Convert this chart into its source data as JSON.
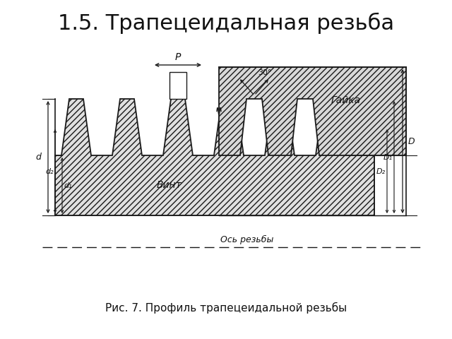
{
  "title": "1.5. Трапецеидальная резьба",
  "caption": "Рис. 7. Профиль трапецеидальной резьбы",
  "label_bolt": "Винт",
  "label_nut": "Гайка",
  "label_axis": "Ось резьбы",
  "label_P": "P",
  "label_angle": "30°",
  "label_d": "d",
  "label_d2": "d₂",
  "label_d1": "d₁",
  "label_D": "D",
  "label_D1": "D₁",
  "label_D2": "D₂",
  "bg_color": "#ffffff",
  "line_color": "#1a1a1a",
  "title_fontsize": 22,
  "caption_fontsize": 11,
  "hatch": "////"
}
